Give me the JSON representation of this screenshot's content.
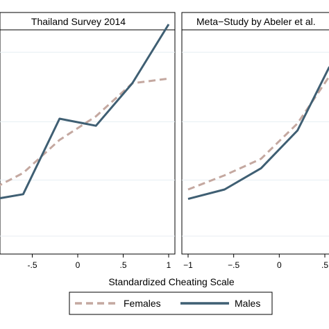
{
  "figure": {
    "xlabel": "Standardized Cheating Scale",
    "legend": [
      "Females",
      "Males"
    ],
    "colors": {
      "females": "#c4a8a0",
      "males": "#3f5f73"
    }
  },
  "chart_data": [
    {
      "type": "line",
      "title": "Thailand Survey 2014",
      "xlabel": "Standardized Cheating Scale",
      "ylabel": "",
      "x_ticks": [
        "-.5",
        "0",
        ".5",
        "1"
      ],
      "xlim": [
        -0.9,
        1.0
      ],
      "ylim": [
        0,
        1
      ],
      "series": [
        {
          "name": "Females",
          "x": [
            -0.9,
            -0.6,
            -0.2,
            0.2,
            0.6,
            1.0
          ],
          "y": [
            0.26,
            0.32,
            0.46,
            0.56,
            0.7,
            0.72
          ]
        },
        {
          "name": "Males",
          "x": [
            -0.9,
            -0.6,
            -0.2,
            0.2,
            0.6,
            1.0
          ],
          "y": [
            0.21,
            0.23,
            0.55,
            0.52,
            0.7,
            0.95
          ]
        }
      ]
    },
    {
      "type": "line",
      "title": "Meta−Study by Abeler et al.",
      "xlabel": "Standardized Cheating Scale",
      "ylabel": "",
      "x_ticks": [
        "−1",
        "−.5",
        "0",
        ".5"
      ],
      "xlim": [
        -1.05,
        0.55
      ],
      "ylim": [
        0,
        1
      ],
      "series": [
        {
          "name": "Females",
          "x": [
            -1.0,
            -0.6,
            -0.2,
            0.2,
            0.55
          ],
          "y": [
            0.25,
            0.31,
            0.38,
            0.53,
            0.73
          ]
        },
        {
          "name": "Males",
          "x": [
            -1.0,
            -0.6,
            -0.2,
            0.2,
            0.55
          ],
          "y": [
            0.21,
            0.25,
            0.34,
            0.5,
            0.77
          ]
        }
      ]
    }
  ]
}
